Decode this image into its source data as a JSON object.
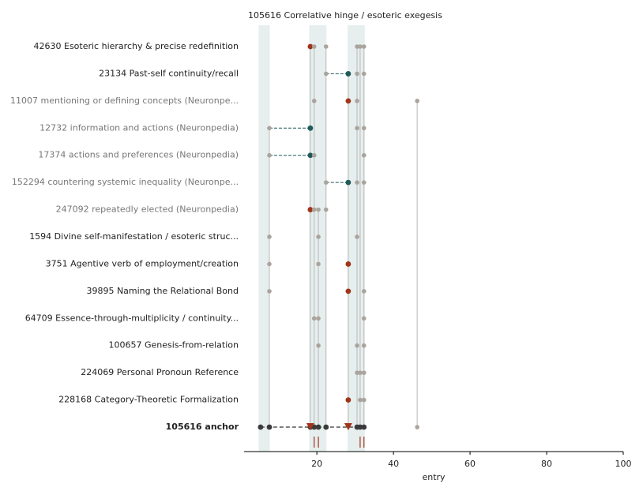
{
  "chart_data": {
    "type": "dot-rows",
    "title": "105616  Correlative hinge / esoteric exegesis",
    "xlabel": "entry",
    "xlim": [
      1,
      100
    ],
    "xticks": [
      20,
      40,
      60,
      80,
      100
    ],
    "bands": [
      [
        4.8,
        7.7
      ],
      [
        18,
        22.5
      ],
      [
        28,
        32.5
      ]
    ],
    "colors": {
      "gray": "#aaa49d",
      "red": "#a0351a",
      "teal": "#1f5a5a",
      "dark": "#3a3a3a",
      "band": "#e6eeee",
      "muted_label": "#777"
    },
    "rows": [
      {
        "label": "42630  Esoteric hierarchy & precise redefinition",
        "points": [
          {
            "x": 18.3,
            "kind": "red"
          },
          {
            "x": 19.3,
            "kind": "gray"
          },
          {
            "x": 22.4,
            "kind": "gray"
          },
          {
            "x": 30.5,
            "kind": "gray"
          },
          {
            "x": 31.3,
            "kind": "gray"
          },
          {
            "x": 32.3,
            "kind": "gray"
          }
        ]
      },
      {
        "label": "23134  Past-self continuity/recall",
        "points": [
          {
            "x": 22.4,
            "kind": "gray"
          },
          {
            "x": 28.2,
            "kind": "teal"
          },
          {
            "x": 30.5,
            "kind": "gray"
          },
          {
            "x": 32.3,
            "kind": "gray"
          }
        ]
      },
      {
        "label": "11007  mentioning or defining concepts (Neuronpe...",
        "muted": true,
        "points": [
          {
            "x": 19.3,
            "kind": "gray"
          },
          {
            "x": 28.2,
            "kind": "red"
          },
          {
            "x": 30.5,
            "kind": "gray"
          },
          {
            "x": 46.2,
            "kind": "gray"
          }
        ]
      },
      {
        "label": "12732  information and actions (Neuronpedia)",
        "muted": true,
        "points": [
          {
            "x": 7.6,
            "kind": "gray"
          },
          {
            "x": 18.3,
            "kind": "teal"
          },
          {
            "x": 30.5,
            "kind": "gray"
          },
          {
            "x": 32.3,
            "kind": "gray"
          }
        ]
      },
      {
        "label": "17374  actions and preferences (Neuronpedia)",
        "muted": true,
        "points": [
          {
            "x": 7.6,
            "kind": "gray"
          },
          {
            "x": 18.3,
            "kind": "teal"
          },
          {
            "x": 19.3,
            "kind": "gray"
          },
          {
            "x": 32.3,
            "kind": "gray"
          }
        ]
      },
      {
        "label": "152294  countering systemic inequality (Neuronpe...",
        "muted": true,
        "points": [
          {
            "x": 22.4,
            "kind": "gray"
          },
          {
            "x": 28.2,
            "kind": "teal"
          },
          {
            "x": 30.5,
            "kind": "gray"
          },
          {
            "x": 32.3,
            "kind": "gray"
          }
        ]
      },
      {
        "label": "247092  repeatedly elected (Neuronpedia)",
        "muted": true,
        "points": [
          {
            "x": 18.3,
            "kind": "red"
          },
          {
            "x": 19.3,
            "kind": "gray"
          },
          {
            "x": 20.4,
            "kind": "gray"
          },
          {
            "x": 22.4,
            "kind": "gray"
          }
        ]
      },
      {
        "label": "1594  Divine self-manifestation / esoteric struc...",
        "points": [
          {
            "x": 7.6,
            "kind": "gray"
          },
          {
            "x": 20.4,
            "kind": "gray"
          },
          {
            "x": 30.5,
            "kind": "gray"
          }
        ]
      },
      {
        "label": "3751  Agentive verb of employment/creation",
        "points": [
          {
            "x": 7.6,
            "kind": "gray"
          },
          {
            "x": 20.4,
            "kind": "gray"
          },
          {
            "x": 28.2,
            "kind": "red"
          }
        ]
      },
      {
        "label": "39895  Naming the Relational Bond",
        "points": [
          {
            "x": 7.6,
            "kind": "gray"
          },
          {
            "x": 28.2,
            "kind": "red"
          },
          {
            "x": 32.3,
            "kind": "gray"
          }
        ]
      },
      {
        "label": "64709  Essence-through-multiplicity / continuity...",
        "points": [
          {
            "x": 19.3,
            "kind": "gray"
          },
          {
            "x": 20.4,
            "kind": "gray"
          },
          {
            "x": 32.3,
            "kind": "gray"
          }
        ]
      },
      {
        "label": "100657  Genesis-from-relation",
        "points": [
          {
            "x": 20.4,
            "kind": "gray"
          },
          {
            "x": 30.5,
            "kind": "gray"
          },
          {
            "x": 32.3,
            "kind": "gray"
          }
        ]
      },
      {
        "label": "224069  Personal Pronoun Reference",
        "points": [
          {
            "x": 30.5,
            "kind": "gray"
          },
          {
            "x": 31.3,
            "kind": "gray"
          },
          {
            "x": 32.3,
            "kind": "gray"
          }
        ]
      },
      {
        "label": "228168  Category-Theoretic Formalization",
        "points": [
          {
            "x": 28.2,
            "kind": "red"
          },
          {
            "x": 31.3,
            "kind": "gray"
          },
          {
            "x": 32.3,
            "kind": "gray"
          }
        ]
      },
      {
        "label": "105616  anchor",
        "bold": true,
        "connected": true,
        "points": [
          {
            "x": 5.3,
            "kind": "dark"
          },
          {
            "x": 7.6,
            "kind": "dark"
          },
          {
            "x": 18.3,
            "kind": "dark"
          },
          {
            "x": 19.3,
            "kind": "dark"
          },
          {
            "x": 20.4,
            "kind": "dark"
          },
          {
            "x": 22.4,
            "kind": "dark"
          },
          {
            "x": 30.5,
            "kind": "dark"
          },
          {
            "x": 31.3,
            "kind": "dark"
          },
          {
            "x": 32.3,
            "kind": "dark"
          },
          {
            "x": 46.2,
            "kind": "gray"
          }
        ]
      }
    ],
    "triangles": [
      18.3,
      28.2
    ],
    "rug": [
      19.3,
      20.4,
      31.3,
      32.3
    ]
  }
}
